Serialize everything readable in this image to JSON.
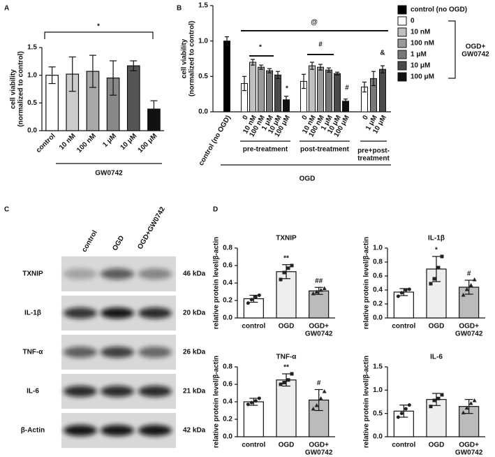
{
  "chart_data": [
    {
      "type": "bar",
      "panel": "A",
      "ylabel": "cell viability\n(normalized to control)",
      "categories": [
        "control",
        "10 nM",
        "100 nM",
        "1 μM",
        "10 μM",
        "100 μM"
      ],
      "values": [
        1.0,
        1.02,
        1.07,
        0.95,
        1.17,
        0.39
      ],
      "errors": [
        0.15,
        0.31,
        0.29,
        0.31,
        0.09,
        0.15
      ],
      "colors": [
        "#ffffff",
        "#cccccc",
        "#a8a8a8",
        "#888888",
        "#555555",
        "#111111"
      ],
      "ylim": [
        0,
        1.5
      ],
      "yticks": [
        {
          "value": 0,
          "label": "0.0"
        },
        0.5,
        {
          "value": 1,
          "label": "1.0"
        },
        1.5
      ],
      "group_label": "GW0742",
      "annotations": [
        "*"
      ]
    },
    {
      "type": "bar",
      "panel": "B",
      "ylabel": "cell viability\n(normalized to control)",
      "categories": [
        "control (no OGD)",
        "0",
        "10 nM",
        "100 nM",
        "1 μM",
        "10 μM",
        "100 μM",
        "0",
        "10 nM",
        "100 nM",
        "1 μM",
        "10 μM",
        "100 μM",
        "0",
        "1 μM",
        "10 μM"
      ],
      "series": [
        {
          "name": "control (no OGD)",
          "color": "#000000",
          "values": [
            1.0,
            null,
            null,
            null,
            null,
            null,
            null,
            null,
            null,
            null,
            null,
            null,
            null,
            null,
            null,
            null
          ],
          "errors": [
            0.06,
            null,
            null,
            null,
            null,
            null,
            null,
            null,
            null,
            null,
            null,
            null,
            null,
            null,
            null,
            null
          ]
        },
        {
          "name": "0",
          "color": "#ffffff",
          "values": [
            null,
            0.4,
            null,
            null,
            null,
            null,
            null,
            0.43,
            null,
            null,
            null,
            null,
            null,
            0.35,
            null,
            null
          ],
          "errors": [
            null,
            0.1,
            null,
            null,
            null,
            null,
            null,
            0.1,
            null,
            null,
            null,
            null,
            null,
            0.07,
            null,
            null
          ]
        },
        {
          "name": "10 nM",
          "color": "#c0c0c0",
          "values": [
            null,
            null,
            0.7,
            null,
            null,
            null,
            null,
            null,
            0.65,
            null,
            null,
            null,
            null,
            null,
            null,
            null
          ],
          "errors": [
            null,
            null,
            0.04,
            null,
            null,
            null,
            null,
            null,
            0.05,
            null,
            null,
            null,
            null,
            null,
            null,
            null
          ]
        },
        {
          "name": "100 nM",
          "color": "#9a9a9a",
          "values": [
            null,
            null,
            null,
            0.63,
            null,
            null,
            null,
            null,
            null,
            0.63,
            null,
            null,
            null,
            null,
            null,
            null
          ],
          "errors": [
            null,
            null,
            null,
            0.03,
            null,
            null,
            null,
            null,
            null,
            0.04,
            null,
            null,
            null,
            null,
            null,
            null
          ]
        },
        {
          "name": "1 μM",
          "color": "#787878",
          "values": [
            null,
            null,
            null,
            null,
            0.58,
            null,
            null,
            null,
            null,
            null,
            0.59,
            null,
            null,
            null,
            0.47,
            null
          ],
          "errors": [
            null,
            null,
            null,
            null,
            0.03,
            null,
            null,
            null,
            null,
            null,
            0.03,
            null,
            null,
            null,
            0.1,
            null
          ]
        },
        {
          "name": "10 μM",
          "color": "#4a4a4a",
          "values": [
            null,
            null,
            null,
            null,
            null,
            0.52,
            null,
            null,
            null,
            null,
            null,
            0.54,
            null,
            null,
            null,
            0.6
          ],
          "errors": [
            null,
            null,
            null,
            null,
            null,
            0.05,
            null,
            null,
            null,
            null,
            null,
            0.02,
            null,
            null,
            null,
            0.05
          ]
        },
        {
          "name": "100 μM",
          "color": "#111111",
          "values": [
            null,
            null,
            null,
            null,
            null,
            null,
            0.17,
            null,
            null,
            null,
            null,
            null,
            0.15,
            null,
            null,
            null
          ],
          "errors": [
            null,
            null,
            null,
            null,
            null,
            null,
            0.05,
            null,
            null,
            null,
            null,
            null,
            0.03,
            null,
            null,
            null
          ]
        }
      ],
      "ylim": [
        0,
        1.5
      ],
      "yticks": [
        {
          "value": 0,
          "label": "0.0"
        },
        0.5,
        {
          "value": 1,
          "label": "1.0"
        },
        1.5
      ],
      "legend_note": "OGD+\nGW0742",
      "group_labels": [
        "pre-treatment",
        "post-treatment",
        "pre+post-\ntreatment"
      ],
      "group_title": "OGD",
      "annotations": [
        "@",
        "*",
        "#",
        "&",
        "*",
        "#"
      ]
    },
    {
      "type": "bar",
      "panel": "D",
      "title": "TXNIP",
      "ylabel": "relative protein level/β-actin",
      "categories": [
        "control",
        "OGD",
        "OGD+\nGW0742"
      ],
      "values": [
        0.22,
        0.53,
        0.31
      ],
      "errors": [
        0.04,
        0.08,
        0.04
      ],
      "points": [
        [
          0.17,
          0.21,
          0.24,
          0.26
        ],
        [
          0.44,
          0.52,
          0.57,
          0.6
        ],
        [
          0.28,
          0.3,
          0.32,
          0.34
        ]
      ],
      "colors": [
        "#ffffff",
        "#eeeeee",
        "#bbbbbb"
      ],
      "ylim": [
        0,
        0.8
      ],
      "yticks": [
        {
          "value": 0,
          "label": "0.0"
        },
        0.2,
        0.4,
        0.6,
        0.8
      ],
      "annotations": [
        null,
        "**",
        "##"
      ]
    },
    {
      "type": "bar",
      "title": "IL-1β",
      "ylabel": "relative protein level/β-actin",
      "categories": [
        "control",
        "OGD",
        "OGD+\nGW0742"
      ],
      "values": [
        0.37,
        0.7,
        0.44
      ],
      "errors": [
        0.05,
        0.18,
        0.1
      ],
      "points": [
        [
          0.31,
          0.36,
          0.4,
          0.41
        ],
        [
          0.49,
          0.56,
          0.72,
          0.88
        ],
        [
          0.33,
          0.41,
          0.47,
          0.55
        ]
      ],
      "colors": [
        "#ffffff",
        "#eeeeee",
        "#bbbbbb"
      ],
      "ylim": [
        0,
        1
      ],
      "yticks": [
        {
          "value": 0,
          "label": "0.0"
        },
        0.2,
        0.4,
        0.6,
        0.8,
        {
          "value": 1,
          "label": "1.0"
        }
      ],
      "annotations": [
        null,
        "*",
        "#"
      ]
    },
    {
      "type": "bar",
      "title": "TNF-α",
      "ylabel": "relative protein level/β-actin",
      "categories": [
        "control",
        "OGD",
        "OGD+\nGW0742"
      ],
      "values": [
        0.4,
        0.65,
        0.42
      ],
      "errors": [
        0.04,
        0.07,
        0.12
      ],
      "points": [
        [
          0.37,
          0.39,
          0.41,
          0.44
        ],
        [
          0.6,
          0.62,
          0.65,
          0.72
        ],
        [
          0.32,
          0.36,
          0.44,
          0.52
        ]
      ],
      "colors": [
        "#ffffff",
        "#eeeeee",
        "#bbbbbb"
      ],
      "ylim": [
        0,
        0.8
      ],
      "yticks": [
        {
          "value": 0,
          "label": "0.0"
        },
        0.2,
        0.4,
        0.6,
        0.8
      ],
      "annotations": [
        null,
        "**",
        "#"
      ]
    },
    {
      "type": "bar",
      "title": "IL-6",
      "ylabel": "relative protein level/β-actin",
      "categories": [
        "control",
        "OGD",
        "OGD+\nGW0742"
      ],
      "values": [
        0.55,
        0.8,
        0.65
      ],
      "errors": [
        0.13,
        0.13,
        0.15
      ],
      "points": [
        [
          0.42,
          0.5,
          0.6,
          0.68
        ],
        [
          0.65,
          0.78,
          0.82,
          0.9
        ],
        [
          0.52,
          0.62,
          0.72,
          0.78
        ]
      ],
      "colors": [
        "#ffffff",
        "#eeeeee",
        "#bbbbbb"
      ],
      "ylim": [
        0,
        1.5
      ],
      "yticks": [
        {
          "value": 0,
          "label": "0.0"
        },
        0.5,
        {
          "value": 1,
          "label": "1.0"
        },
        1.5
      ]
    }
  ],
  "blot": {
    "panel": "C",
    "lanes": [
      "control",
      "OGD",
      "OGD+GW0742"
    ],
    "rows": [
      {
        "protein": "TXNIP",
        "size": "46 kDa"
      },
      {
        "protein": "IL-1β",
        "size": "20 kDa"
      },
      {
        "protein": "TNF-α",
        "size": "26 kDa"
      },
      {
        "protein": "IL-6",
        "size": "21 kDa"
      },
      {
        "protein": "β-Actin",
        "size": "42 kDa"
      }
    ]
  }
}
